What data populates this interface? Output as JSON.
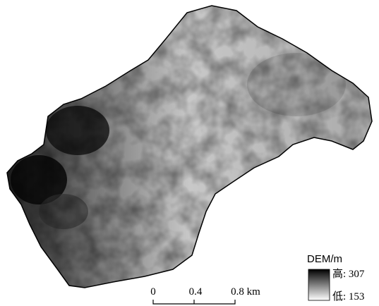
{
  "legend": {
    "title": "DEM/m",
    "high": "高: 307",
    "low": "低: 153"
  },
  "scale_bar": {
    "labels": [
      "0",
      "0.4",
      "0.8 km"
    ]
  }
}
